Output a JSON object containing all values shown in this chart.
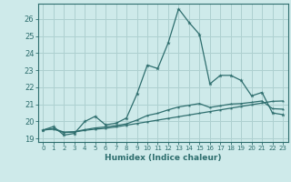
{
  "xlabel": "Humidex (Indice chaleur)",
  "background_color": "#ceeaea",
  "grid_color": "#aed0d0",
  "line_color": "#2e6e6e",
  "xlim": [
    -0.5,
    23.5
  ],
  "ylim": [
    18.8,
    26.9
  ],
  "yticks": [
    19,
    20,
    21,
    22,
    23,
    24,
    25,
    26
  ],
  "xticks": [
    0,
    1,
    2,
    3,
    4,
    5,
    6,
    7,
    8,
    9,
    10,
    11,
    12,
    13,
    14,
    15,
    16,
    17,
    18,
    19,
    20,
    21,
    22,
    23
  ],
  "series1_y": [
    19.5,
    19.7,
    19.2,
    19.3,
    20.0,
    20.3,
    19.8,
    19.9,
    20.2,
    21.6,
    23.3,
    23.1,
    24.6,
    26.6,
    25.8,
    25.1,
    22.2,
    22.7,
    22.7,
    22.4,
    21.5,
    21.7,
    20.5,
    20.4
  ],
  "series2_y": [
    19.5,
    19.55,
    19.35,
    19.38,
    19.48,
    19.55,
    19.6,
    19.68,
    19.78,
    19.88,
    19.98,
    20.08,
    20.18,
    20.28,
    20.38,
    20.48,
    20.58,
    20.68,
    20.78,
    20.88,
    20.98,
    21.08,
    21.18,
    21.2
  ],
  "series3_y": [
    19.5,
    19.58,
    19.38,
    19.4,
    19.52,
    19.62,
    19.68,
    19.76,
    19.86,
    20.08,
    20.35,
    20.48,
    20.68,
    20.85,
    20.95,
    21.05,
    20.82,
    20.92,
    21.02,
    21.05,
    21.12,
    21.2,
    20.75,
    20.72
  ]
}
